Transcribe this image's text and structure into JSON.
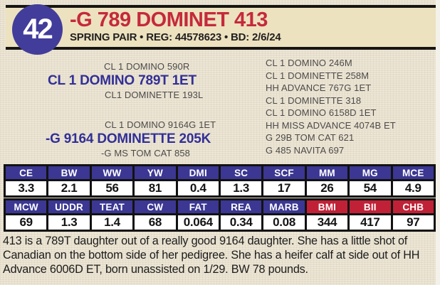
{
  "lot": {
    "number": "42"
  },
  "header": {
    "title": "-G 789 DOMINET 413",
    "subtitle": "SPRING PAIR  •  REG: 44578623  •  BD: 2/6/24"
  },
  "pedigree": {
    "sire_sire": "CL 1 DOMINO 590R",
    "sire": "CL 1 DOMINO 789T 1ET",
    "sire_dam": "CL1 DOMINETTE 193L",
    "dam_sire": "CL 1 DOMINO 9164G 1ET",
    "dam": "-G 9164 DOMINETTE 205K",
    "dam_dam": "-G MS TOM CAT 858",
    "ancestors": [
      "CL 1 DOMINO 246M",
      "CL 1 DOMINETTE 258M",
      "HH ADVANCE 767G 1ET",
      "CL 1 DOMINETTE 318",
      "CL 1 DOMINO 6158D 1ET",
      "HH MISS ADVANCE 4074B ET",
      "G 29B TOM CAT 621",
      "G 485 NAVITA 697"
    ]
  },
  "epd1": {
    "headers": [
      "CE",
      "BW",
      "WW",
      "YW",
      "DMI",
      "SC",
      "SCF",
      "MM",
      "MG",
      "MCE"
    ],
    "values": [
      "3.3",
      "2.1",
      "56",
      "81",
      "0.4",
      "1.3",
      "17",
      "26",
      "54",
      "4.9"
    ]
  },
  "epd2": {
    "headers": [
      "MCW",
      "UDDR",
      "TEAT",
      "CW",
      "FAT",
      "REA",
      "MARB",
      "BMI",
      "BII",
      "CHB"
    ],
    "values": [
      "69",
      "1.3",
      "1.4",
      "68",
      "0.064",
      "0.34",
      "0.08",
      "344",
      "417",
      "97"
    ]
  },
  "description": "413 is a 789T daughter out of a really good 9164 daughter. She has a little shot of Canadian on the bottom side of her pedigree. She has a heifer calf at side out of HH Advance 6006D ET, born unassisted on 1/29. BW 78 pounds.",
  "colors": {
    "paper": "#e8e0cd",
    "header_band": "#ece2bf",
    "lot_circle_blue": "#423d9a",
    "title_red": "#c5293c",
    "pedigree_name_blue": "#322f97",
    "epd_header_blue": "#3b3793",
    "epd_header_red": "#c12136"
  }
}
